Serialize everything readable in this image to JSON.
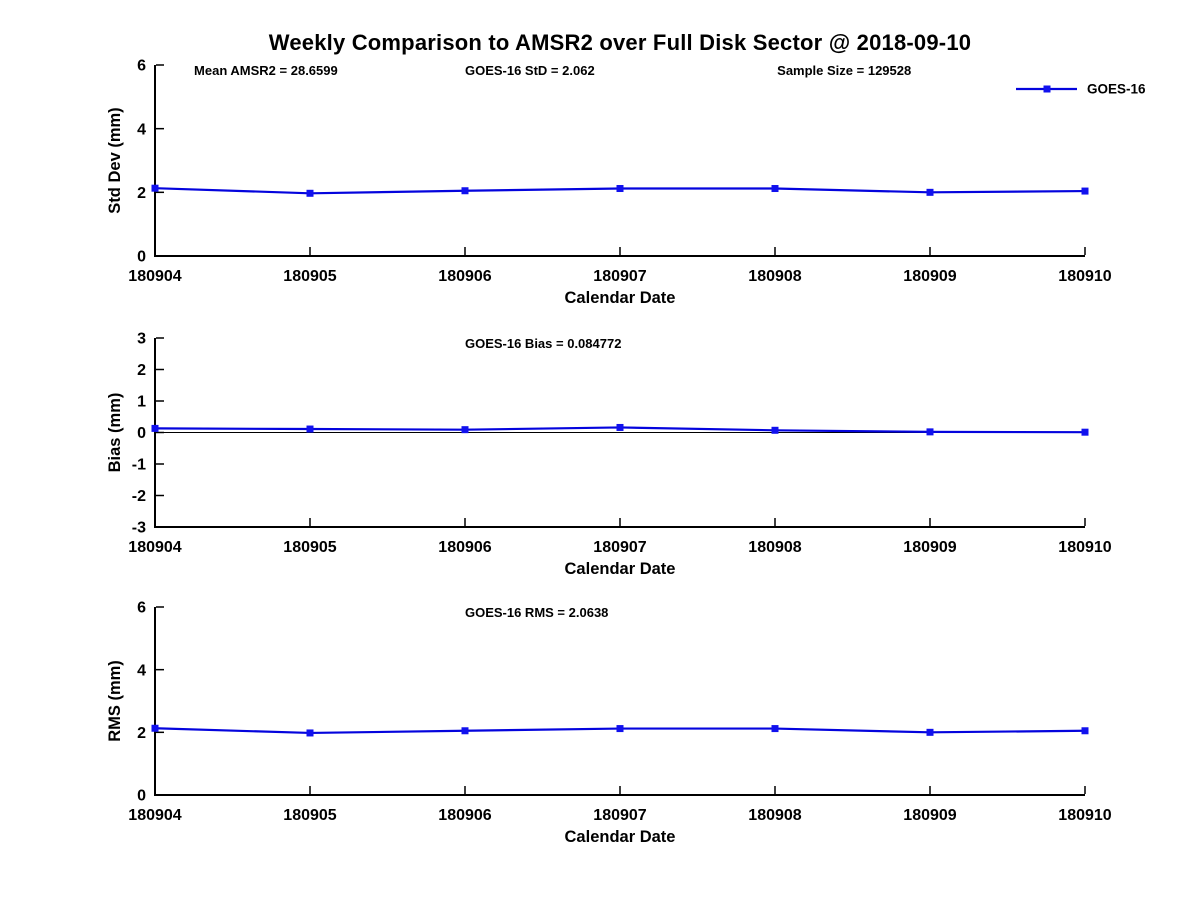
{
  "title": "Weekly Comparison to AMSR2 over Full Disk Sector @ 2018-09-10",
  "legend": {
    "label": "GOES-16"
  },
  "colors": {
    "line": "#0404dd",
    "marker": "#1111ee",
    "axis": "#000000",
    "text": "#000000",
    "zero_line": "#000000",
    "background": "#ffffff"
  },
  "x_axis": {
    "label": "Calendar Date",
    "ticks": [
      "180904",
      "180905",
      "180906",
      "180907",
      "180908",
      "180909",
      "180910"
    ]
  },
  "chart_data": [
    {
      "type": "line",
      "name": "std-dev",
      "ylabel": "Std Dev (mm)",
      "xlabel": "Calendar Date",
      "ylim": [
        0,
        6
      ],
      "yticks": [
        0,
        2,
        4,
        6
      ],
      "x_categories": [
        "180904",
        "180905",
        "180906",
        "180907",
        "180908",
        "180909",
        "180910"
      ],
      "series": [
        {
          "name": "GOES-16",
          "values": [
            2.13,
            1.97,
            2.05,
            2.12,
            2.12,
            2.0,
            2.04
          ]
        }
      ],
      "annotations": [
        "Mean AMSR2 = 28.6599",
        "GOES-16 StD = 2.062",
        "Sample Size = 129528"
      ],
      "zero_line": false,
      "show_legend": true,
      "legend_position": "top-right",
      "grid": false
    },
    {
      "type": "line",
      "name": "bias",
      "ylabel": "Bias (mm)",
      "xlabel": "Calendar Date",
      "ylim": [
        -3,
        3
      ],
      "yticks": [
        3,
        2,
        1,
        0,
        -1,
        -2,
        -3
      ],
      "x_categories": [
        "180904",
        "180905",
        "180906",
        "180907",
        "180908",
        "180909",
        "180910"
      ],
      "series": [
        {
          "name": "GOES-16",
          "values": [
            0.13,
            0.11,
            0.09,
            0.16,
            0.07,
            0.02,
            0.01
          ]
        }
      ],
      "annotations": [
        "GOES-16 Bias  = 0.084772"
      ],
      "zero_line": true,
      "show_legend": false,
      "grid": false
    },
    {
      "type": "line",
      "name": "rms",
      "ylabel": "RMS (mm)",
      "xlabel": "Calendar Date",
      "ylim": [
        0,
        6
      ],
      "yticks": [
        0,
        2,
        4,
        6
      ],
      "x_categories": [
        "180904",
        "180905",
        "180906",
        "180907",
        "180908",
        "180909",
        "180910"
      ],
      "series": [
        {
          "name": "GOES-16",
          "values": [
            2.13,
            1.98,
            2.05,
            2.12,
            2.12,
            2.0,
            2.05
          ]
        }
      ],
      "annotations": [
        "GOES-16 RMS = 2.0638"
      ],
      "zero_line": false,
      "show_legend": false,
      "grid": false
    }
  ]
}
